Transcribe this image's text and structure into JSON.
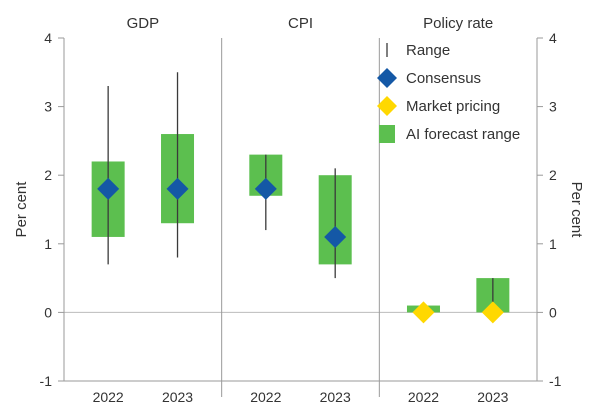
{
  "chart_data": {
    "type": "bar",
    "panels": [
      {
        "title": "GDP",
        "categories": [
          "2022",
          "2023"
        ],
        "range": [
          [
            0.7,
            3.3
          ],
          [
            0.8,
            3.5
          ]
        ],
        "consensus": [
          1.8,
          1.8
        ],
        "market_pricing": [
          null,
          null
        ],
        "ai_forecast_range": [
          [
            1.1,
            2.2
          ],
          [
            1.3,
            2.6
          ]
        ]
      },
      {
        "title": "CPI",
        "categories": [
          "2022",
          "2023"
        ],
        "range": [
          [
            1.2,
            2.3
          ],
          [
            0.5,
            2.1
          ]
        ],
        "consensus": [
          1.8,
          1.1
        ],
        "market_pricing": [
          null,
          null
        ],
        "ai_forecast_range": [
          [
            1.7,
            2.3
          ],
          [
            0.7,
            2.0
          ]
        ]
      },
      {
        "title": "Policy rate",
        "categories": [
          "2022",
          "2023"
        ],
        "range": [
          [
            0.0,
            0.0
          ],
          [
            -0.1,
            0.5
          ]
        ],
        "consensus": [
          null,
          null
        ],
        "market_pricing": [
          0.0,
          0.0
        ],
        "ai_forecast_range": [
          [
            0.0,
            0.1
          ],
          [
            0.0,
            0.5
          ]
        ]
      }
    ],
    "ylim": [
      -1,
      4
    ],
    "yticks": [
      "-1",
      "0",
      "1",
      "2",
      "3",
      "4"
    ],
    "ylabel_left": "Per cent",
    "ylabel_right": "Per cent",
    "legend": {
      "placement": "top-right",
      "entries": [
        "Range",
        "Consensus",
        "Market pricing",
        "AI forecast range"
      ]
    },
    "colors": {
      "range": "#3a3a3a",
      "consensus": "#1458a6",
      "market_pricing": "#ffd800",
      "ai_forecast_range": "#5cbf4f",
      "axis": "#9a9a9a",
      "zero_line": "#bbbbbb"
    }
  }
}
